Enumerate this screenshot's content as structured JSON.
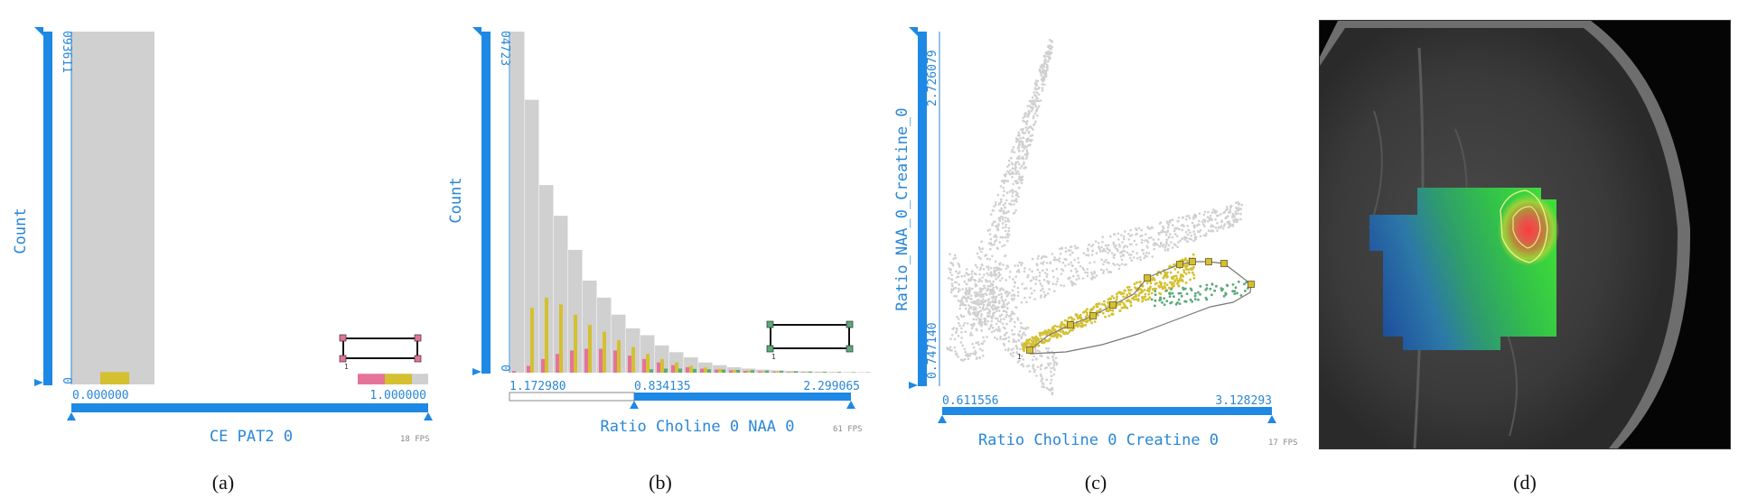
{
  "colors": {
    "axis_blue": "#1e88e5",
    "context_gray": "#d0d0d0",
    "yellow": "#d4c030",
    "pink": "#e57399",
    "green": "#5aaa78"
  },
  "chart_data": [
    {
      "type": "bar",
      "caption": "(a)",
      "xlabel": "CE PAT2 0",
      "ylabel": "Count",
      "x_min_label": "0.000000",
      "x_max_label": "1.000000",
      "y_max_label": "093611",
      "y_min_label": "0",
      "fps": "18 FPS",
      "brush_label": "1",
      "bins": [
        {
          "x": 0.0,
          "context": 1.0,
          "yellow": 0.035,
          "pink": 0
        },
        {
          "x": 1.0,
          "context": 0.03,
          "yellow": 0.03,
          "pink": 0.03
        }
      ]
    },
    {
      "type": "bar",
      "caption": "(b)",
      "xlabel": "Ratio Choline 0 NAA 0",
      "ylabel": "Count",
      "x_min_label": "1.172980",
      "x_mid_label": "0.834135",
      "x_max_label": "2.299065",
      "y_max_label": "04723",
      "y_min_label": "0",
      "fps": "61 FPS",
      "brush_label": "1",
      "context": [
        1.0,
        0.8,
        0.55,
        0.46,
        0.36,
        0.27,
        0.22,
        0.17,
        0.13,
        0.11,
        0.08,
        0.06,
        0.045,
        0.03,
        0.022,
        0.016,
        0.012,
        0.009,
        0.007,
        0.005,
        0.004,
        0.003,
        0.002,
        0.0015,
        0.001
      ],
      "yellow": [
        0.0,
        0.19,
        0.22,
        0.2,
        0.17,
        0.14,
        0.12,
        0.095,
        0.075,
        0.055,
        0.04,
        0.03,
        0.02,
        0.015,
        0.011,
        0.008,
        0.006,
        0.004,
        0.003,
        0.002,
        0.0015,
        0.001,
        0.0008,
        0.0005,
        0.0003
      ],
      "pink": [
        0.005,
        0.02,
        0.04,
        0.055,
        0.065,
        0.07,
        0.07,
        0.065,
        0.05,
        0.04,
        0.03,
        0.022,
        0.016,
        0.012,
        0.009,
        0.007,
        0.005,
        0.004,
        0.003,
        0.002,
        0.0015,
        0.001,
        0.0008,
        0.0005,
        0.0003
      ],
      "green": [
        0,
        0,
        0,
        0,
        0,
        0,
        0,
        0,
        0,
        0.01,
        0.012,
        0.012,
        0.011,
        0.01,
        0.009,
        0.008,
        0.007,
        0.006,
        0.005,
        0.004,
        0.003,
        0.0025,
        0.002,
        0.0015,
        0.001
      ]
    },
    {
      "type": "scatter",
      "caption": "(c)",
      "xlabel": "Ratio Choline 0 Creatine 0",
      "ylabel": "Ratio_NAA_0_Creatine_0",
      "x_min_label": "0.611556",
      "x_max_label": "3.128293",
      "y_min_label": "0.747140",
      "y_max_label": "2.726079",
      "xlim": [
        0.611556,
        3.128293
      ],
      "ylim": [
        0.74714,
        2.726079
      ],
      "fps": "17 FPS",
      "brush_label": "1"
    }
  ],
  "captions": {
    "a": "(a)",
    "b": "(b)",
    "c": "(c)",
    "d": "(d)"
  }
}
